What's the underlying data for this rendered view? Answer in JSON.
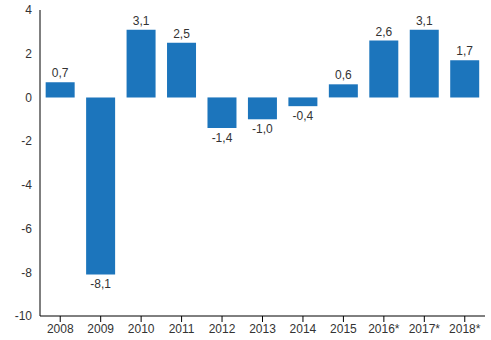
{
  "chart_data": {
    "type": "bar",
    "categories": [
      "2008",
      "2009",
      "2010",
      "2011",
      "2012",
      "2013",
      "2014",
      "2015",
      "2016*",
      "2017*",
      "2018*"
    ],
    "values": [
      0.7,
      -8.1,
      3.1,
      2.5,
      -1.4,
      -1.0,
      -0.4,
      0.6,
      2.6,
      3.1,
      1.7
    ],
    "value_labels": [
      "0,7",
      "-8,1",
      "3,1",
      "2,5",
      "-1,4",
      "-1,0",
      "-0,4",
      "0,6",
      "2,6",
      "3,1",
      "1,7"
    ],
    "color": "#1c75bc",
    "ylim": [
      -10,
      4
    ],
    "yticks": [
      -10,
      -8,
      -6,
      -4,
      -2,
      0,
      2,
      4
    ],
    "grid": false,
    "data_labels": true
  }
}
